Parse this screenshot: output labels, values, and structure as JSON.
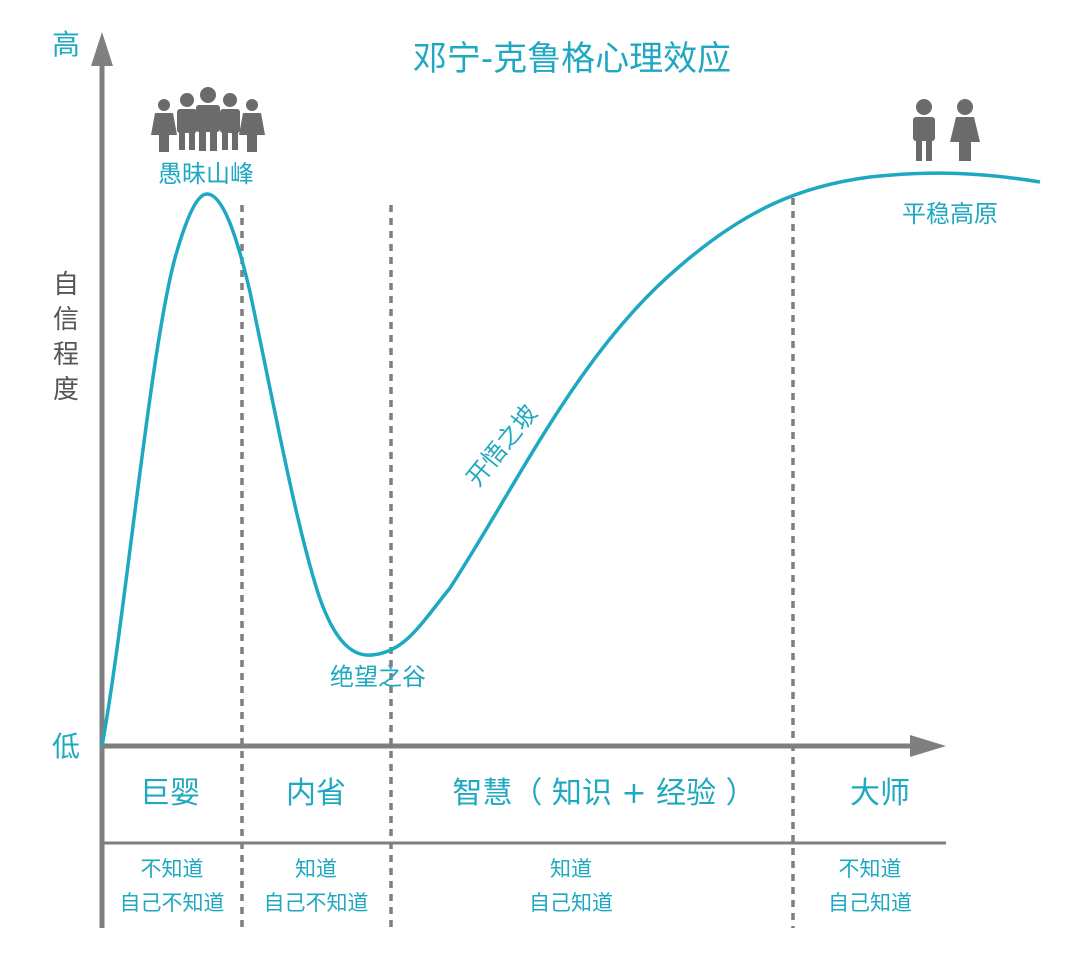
{
  "title": "邓宁-克鲁格心理效应",
  "y_axis": {
    "high_label": "高",
    "low_label": "低",
    "label_chars": [
      "自",
      "信",
      "程",
      "度"
    ]
  },
  "curve_labels": {
    "peak": "愚昧山峰",
    "valley": "绝望之谷",
    "slope": "开悟之坡",
    "plateau": "平稳高原"
  },
  "stages": [
    {
      "name": "巨婴",
      "line1": "不知道",
      "line2": "自己不知道"
    },
    {
      "name": "内省",
      "line1": "知道",
      "line2": "自己不知道"
    },
    {
      "name": "智慧（ 知识 + 经验 ）",
      "line1": "知道",
      "line2": "自己知道"
    },
    {
      "name": "大师",
      "line1": "不知道",
      "line2": "自己知道"
    }
  ],
  "colors": {
    "accent": "#1fa8c1",
    "axis": "#7f7f7f",
    "divider": "#7f7f7f",
    "figure": "#6b6b6b"
  },
  "icons": {
    "crowd": "people-group-icon",
    "pair": "two-people-icon"
  }
}
